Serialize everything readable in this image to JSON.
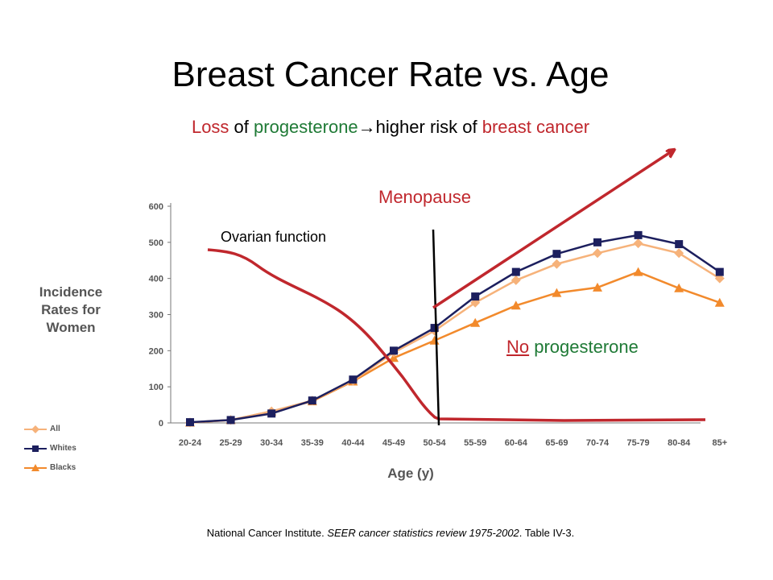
{
  "slide": {
    "title": "Breast Cancer Rate vs. Age",
    "subtitle": {
      "part1": "Loss",
      "part2": " of ",
      "part3": "progesterone",
      "part4": "→",
      "part5": "higher risk of ",
      "part6": "breast cancer"
    },
    "menopause_label": "Menopause",
    "ovarian_label": "Ovarian function",
    "no_progesterone": {
      "part1": "No",
      "part2": " progesterone"
    },
    "source": {
      "part1": "National Cancer Institute. ",
      "part2": "SEER cancer statistics review 1975-2002",
      "part3": ". Table IV-3."
    },
    "colors": {
      "accent_red": "#c0272d",
      "accent_green": "#1f7a36"
    }
  },
  "chart_data": {
    "type": "line",
    "title": "",
    "xlabel": "Age (y)",
    "ylabel": "Incidence\nRates for\nWomen",
    "ylim": [
      0,
      600
    ],
    "yticks": [
      0,
      100,
      200,
      300,
      400,
      500,
      600
    ],
    "categories": [
      "20-24",
      "25-29",
      "30-34",
      "35-39",
      "40-44",
      "45-49",
      "50-54",
      "55-59",
      "60-64",
      "65-69",
      "70-74",
      "75-79",
      "80-84",
      "85+"
    ],
    "legend_position": "bottom-left",
    "series": [
      {
        "name": "All",
        "marker": "diamond",
        "color": "#f6b27a",
        "values": [
          1,
          8,
          32,
          62,
          117,
          195,
          255,
          333,
          395,
          440,
          470,
          497,
          470,
          400
        ]
      },
      {
        "name": "Whites",
        "marker": "square",
        "color": "#1c1f5e",
        "values": [
          2,
          8,
          26,
          62,
          120,
          200,
          263,
          350,
          418,
          468,
          500,
          520,
          495,
          418
        ]
      },
      {
        "name": "Blacks",
        "marker": "triangle",
        "color": "#f28a2c",
        "values": [
          1,
          8,
          32,
          60,
          115,
          180,
          228,
          277,
          325,
          360,
          375,
          418,
          373,
          333
        ]
      }
    ]
  }
}
